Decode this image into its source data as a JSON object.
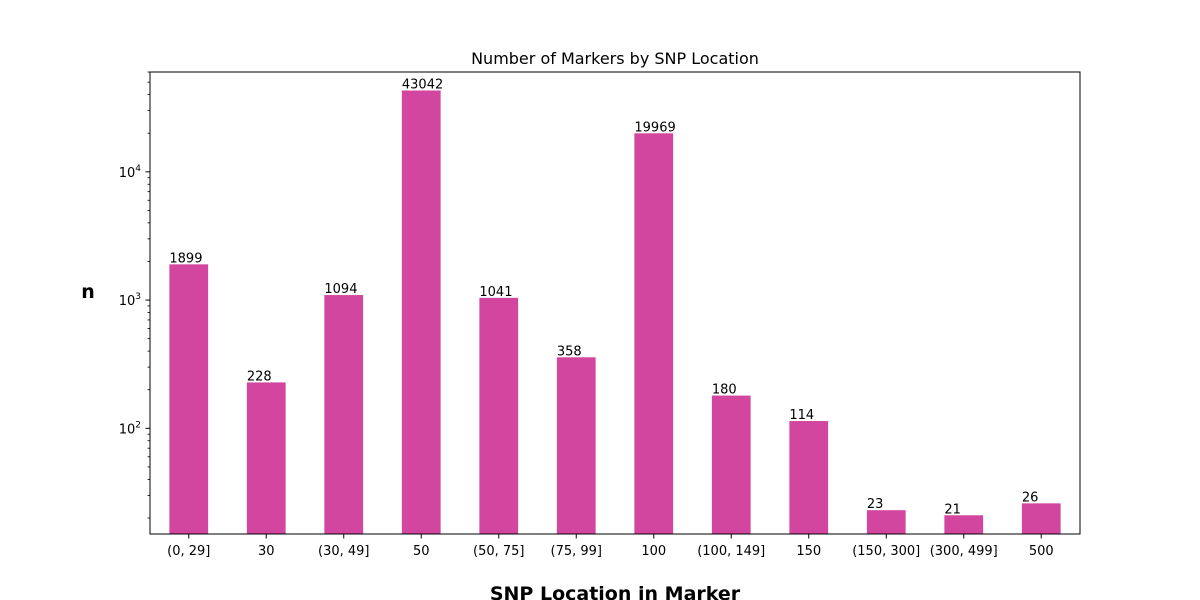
{
  "chart_data": {
    "type": "bar",
    "title": "Number of Markers by SNP Location",
    "xlabel": "SNP Location in Marker",
    "ylabel": "n",
    "yscale": "log",
    "ylim": [
      15,
      60000
    ],
    "grid": false,
    "legend": "none",
    "bar_color": "#d3469f",
    "categories": [
      "(0, 29]",
      "30",
      "(30, 49]",
      "50",
      "(50, 75]",
      "(75, 99]",
      "100",
      "(100, 149]",
      "150",
      "(150, 300]",
      "(300, 499]",
      "500"
    ],
    "values": [
      1899,
      228,
      1094,
      43042,
      1041,
      358,
      19969,
      180,
      114,
      23,
      21,
      26
    ],
    "y_ticks": [
      {
        "value": 100,
        "base": "10",
        "exp": "2"
      },
      {
        "value": 1000,
        "base": "10",
        "exp": "3"
      },
      {
        "value": 10000,
        "base": "10",
        "exp": "4"
      }
    ]
  }
}
